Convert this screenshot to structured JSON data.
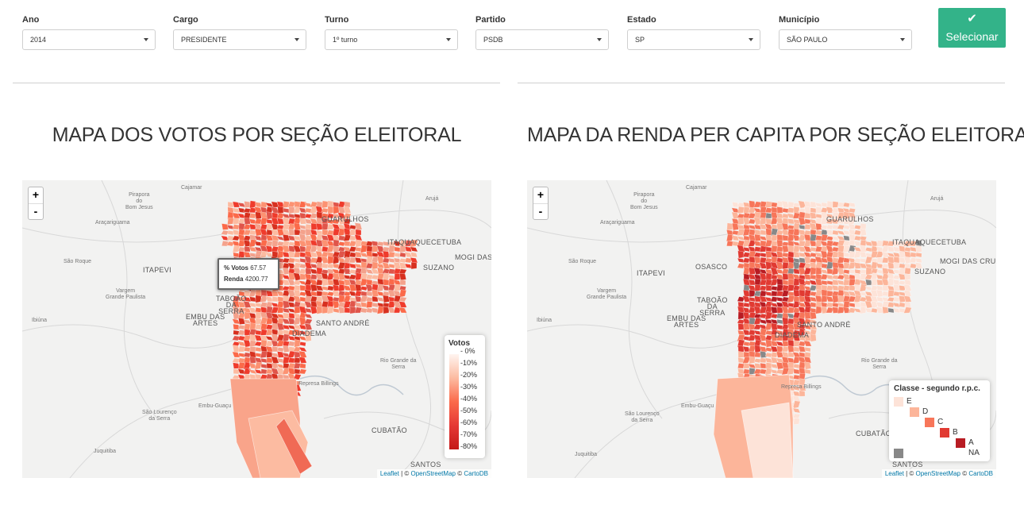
{
  "filters": [
    {
      "label": "Ano",
      "value": "2014"
    },
    {
      "label": "Cargo",
      "value": "PRESIDENTE"
    },
    {
      "label": "Turno",
      "value": "1º turno"
    },
    {
      "label": "Partido",
      "value": "PSDB"
    },
    {
      "label": "Estado",
      "value": "SP"
    },
    {
      "label": "Município",
      "value": "SÃO PAULO"
    }
  ],
  "select_button": {
    "label": "Selecionar",
    "icon": "check-icon"
  },
  "left_panel": {
    "title": "MAPA DOS VOTOS POR SEÇÃO ELEITORAL",
    "tooltip": {
      "votes_label": "% Votos",
      "votes_value": "67.57",
      "income_label": "Renda",
      "income_value": "4200.77"
    },
    "legend": {
      "title": "Votos",
      "ticks": [
        "0%",
        "10%",
        "20%",
        "30%",
        "40%",
        "50%",
        "60%",
        "70%",
        "80%"
      ],
      "colors": [
        "#fff5f0",
        "#fcbba1",
        "#fb6a4a",
        "#e53935",
        "#c41818"
      ]
    }
  },
  "right_panel": {
    "title": "MAPA DA RENDA PER CAPITA POR SEÇÃO ELEITORAL",
    "legend": {
      "title": "Classe - segundo r.p.c.",
      "classes": [
        {
          "label": "E",
          "color": "#fde3d8"
        },
        {
          "label": "D",
          "color": "#fcb59a"
        },
        {
          "label": "C",
          "color": "#f7765a"
        },
        {
          "label": "B",
          "color": "#e13a32"
        },
        {
          "label": "A",
          "color": "#b81c23"
        },
        {
          "label": "NA",
          "color": "#888888"
        }
      ]
    }
  },
  "map": {
    "zoom_in": "+",
    "zoom_out": "-",
    "attribution": {
      "leaflet": "Leaflet",
      "sep": " | © ",
      "osm": "OpenStreetMap",
      "sep2": " © ",
      "carto": "CartoDB"
    },
    "place_labels": {
      "pirapora": "Pirapora\ndo\nBom Jesus",
      "cajamar": "Cajamar",
      "aruja": "Arujá",
      "guarulhos": "GUARULHOS",
      "araariguama": "Araçariguama",
      "itaquecetuba": "ITAQUAQUECETUBA",
      "sao_roque": "São Roque",
      "itapevi": "ITAPEVI",
      "mogi": "MOGI DAS CRUZES",
      "suzano": "SUZANO",
      "osasco": "OSASCO",
      "vargem": "Vargem\nGrande Paulista",
      "taboao": "TABOÃO\nDA\nSERRA",
      "ibiuna": "Ibiúna",
      "embu": "EMBU DAS\nARTES",
      "santo_andre": "SANTO ANDRÉ",
      "diadema": "DIADEMA",
      "rio_grande": "Rio Grande da\nSerra",
      "represa": "Represa Billings",
      "embu_guacu": "Embu-Guaçu",
      "sao_lourenco": "São Lourenço\nda Serra",
      "cubatao": "CUBATÃO",
      "juquitiba": "Juquitiba",
      "santos": "SANTOS"
    }
  }
}
